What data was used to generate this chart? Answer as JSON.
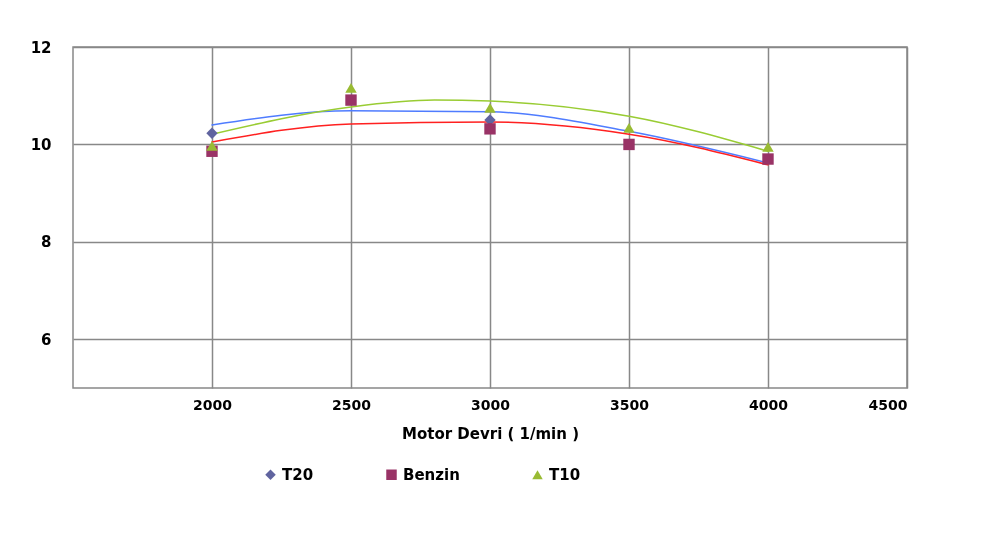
{
  "chart_data": {
    "type": "scatter",
    "xlabel": "Motor Devri ( 1/min  )",
    "x": [
      2000,
      2500,
      3000,
      3500,
      4000
    ],
    "xlim": [
      1500,
      4500
    ],
    "xticks": [
      2000,
      2500,
      3000,
      3500,
      4000,
      4500
    ],
    "ylim": [
      5,
      12
    ],
    "yticks": [
      6,
      8,
      10,
      12
    ],
    "grid": true,
    "legend": "bottom",
    "series": [
      {
        "name": "T20",
        "color": "#60649f",
        "marker": "diamond",
        "values": [
          10.23,
          null,
          10.5,
          null,
          null
        ]
      },
      {
        "name": "Benzin",
        "color": "#993366",
        "marker": "square",
        "values": [
          9.86,
          10.91,
          10.32,
          10.0,
          9.7
        ]
      },
      {
        "name": "T10",
        "color": "#99bb33",
        "marker": "triangle",
        "values": [
          9.97,
          11.16,
          10.75,
          10.34,
          9.95
        ]
      },
      {
        "type": "line",
        "color": "#4f7cff",
        "marker": "none",
        "x": [
          2000,
          2500,
          3000,
          3500,
          4000
        ],
        "values": [
          10.4,
          10.69,
          10.67,
          10.27,
          9.62
        ]
      },
      {
        "type": "line",
        "color": "#ff2020",
        "marker": "none",
        "x": [
          2000,
          2500,
          3000,
          3500,
          4000
        ],
        "values": [
          10.05,
          10.42,
          10.46,
          10.21,
          9.58
        ]
      },
      {
        "type": "line",
        "color": "#99cc33",
        "marker": "none",
        "x": [
          2000,
          2500,
          2800,
          3000,
          3500,
          4000
        ],
        "values": [
          10.21,
          10.77,
          10.91,
          10.89,
          10.58,
          9.86
        ]
      }
    ]
  }
}
